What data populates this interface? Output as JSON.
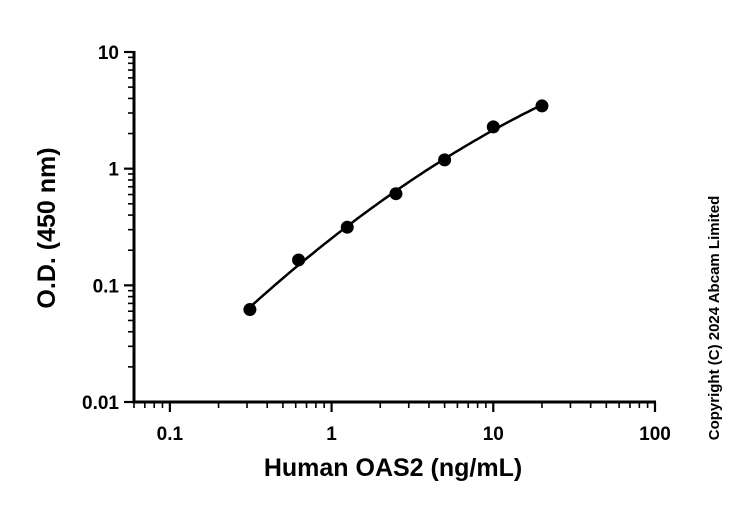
{
  "chart_data": {
    "type": "scatter",
    "title": "",
    "xlabel": "Human OAS2 (ng/mL)",
    "ylabel": "O.D. (450 nm)",
    "x_scale": "log",
    "y_scale": "log",
    "xlim": [
      0.06,
      100
    ],
    "ylim": [
      0.01,
      10
    ],
    "x_ticks": [
      {
        "value": 0.1,
        "label": "0.1"
      },
      {
        "value": 1,
        "label": "1"
      },
      {
        "value": 10,
        "label": "10"
      },
      {
        "value": 100,
        "label": "100"
      }
    ],
    "y_ticks": [
      {
        "value": 0.01,
        "label": "0.01"
      },
      {
        "value": 0.1,
        "label": "0.1"
      },
      {
        "value": 1,
        "label": "1"
      },
      {
        "value": 10,
        "label": "10"
      }
    ],
    "grid": false,
    "legend": "none",
    "series": [
      {
        "x": [
          0.3125,
          0.625,
          1.25,
          2.5,
          5,
          10,
          20
        ],
        "y": [
          0.062,
          0.165,
          0.315,
          0.61,
          1.19,
          2.28,
          3.45
        ],
        "marker": "circle",
        "fit_line": true
      }
    ],
    "colors": {
      "points": "#000000",
      "line": "#000000",
      "axes": "#000000"
    }
  },
  "copyright": "Copyright (C) 2024 Abcam Limited"
}
